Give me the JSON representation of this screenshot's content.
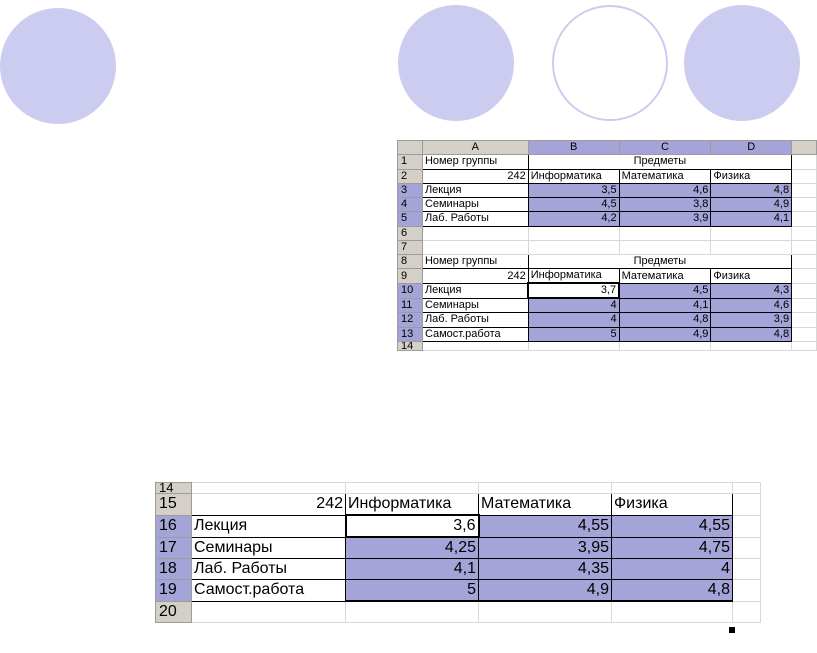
{
  "colors": {
    "circle": "#ccccf0",
    "selection": "#a4a4d8",
    "header": "#d4d0c8"
  },
  "sheet1": {
    "columns": [
      "A",
      "B",
      "C",
      "D"
    ],
    "rows": [
      "1",
      "2",
      "3",
      "4",
      "5",
      "6",
      "7",
      "8",
      "9",
      "10",
      "11",
      "12",
      "13",
      "14"
    ],
    "a1": "Номер группы",
    "merged1": "Предметы",
    "a2": "242",
    "b2": "Информатика",
    "c2": "Математика",
    "d2": "Физика",
    "a3": "Лекция",
    "b3": "3,5",
    "c3": "4,6",
    "d3": "4,8",
    "a4": "Семинары",
    "b4": "4,5",
    "c4": "3,8",
    "d4": "4,9",
    "a5": "Лаб. Работы",
    "b5": "4,2",
    "c5": "3,9",
    "d5": "4,1",
    "a8": "Номер группы",
    "merged8": "Предметы",
    "a9": "242",
    "b9": "Информатика",
    "c9": "Математика",
    "d9": "Физика",
    "a10": "Лекция",
    "b10": "3,7",
    "c10": "4,5",
    "d10": "4,3",
    "a11": "Семинары",
    "b11": "4",
    "c11": "4,1",
    "d11": "4,6",
    "a12": "Лаб. Работы",
    "b12": "4",
    "c12": "4,8",
    "d12": "3,9",
    "a13": "Самост.работа",
    "b13": "5",
    "c13": "4,9",
    "d13": "4,8"
  },
  "sheet2": {
    "rows": [
      "14",
      "15",
      "16",
      "17",
      "18",
      "19",
      "20"
    ],
    "a15": "242",
    "b15": "Информатика",
    "c15": "Математика",
    "d15": "Физика",
    "a16": "Лекция",
    "b16": "3,6",
    "c16": "4,55",
    "d16": "4,55",
    "a17": "Семинары",
    "b17": "4,25",
    "c17": "3,95",
    "d17": "4,75",
    "a18": "Лаб. Работы",
    "b18": "4,1",
    "c18": "4,35",
    "d18": "4",
    "a19": "Самост.работа",
    "b19": "5",
    "c19": "4,9",
    "d19": "4,8"
  }
}
